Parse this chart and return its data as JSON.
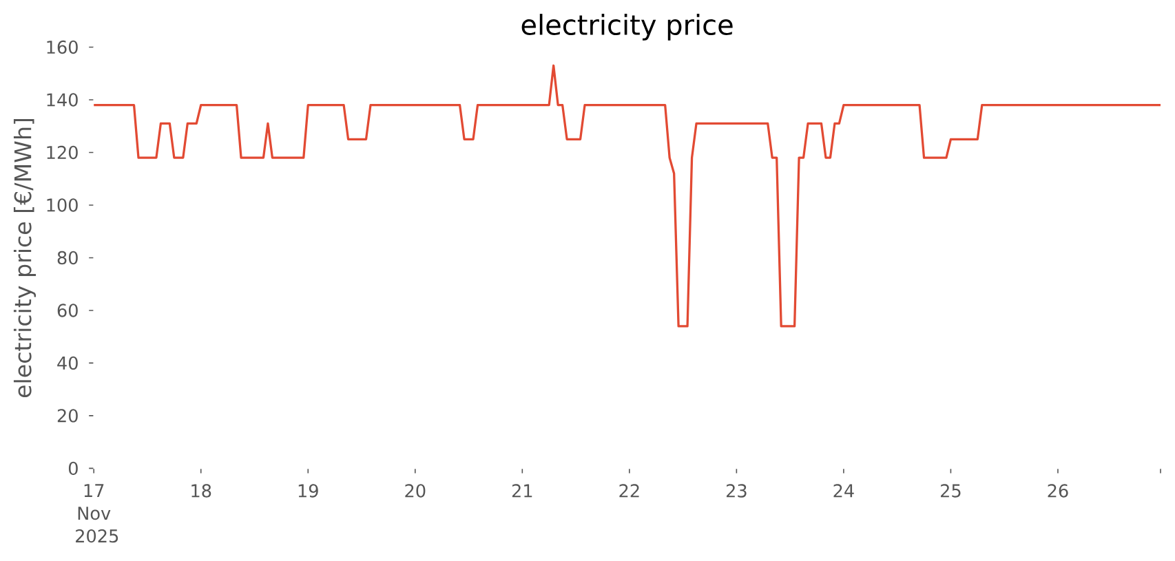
{
  "chart_data": {
    "type": "line",
    "title": "electricity price",
    "ylabel": "electricity price [€/MWh]",
    "x": [
      "2025-11-17T00:00",
      "2025-11-17T09:00",
      "2025-11-17T10:00",
      "2025-11-17T14:00",
      "2025-11-17T15:00",
      "2025-11-17T17:00",
      "2025-11-17T18:00",
      "2025-11-17T20:00",
      "2025-11-17T21:00",
      "2025-11-17T23:00",
      "2025-11-18T00:00",
      "2025-11-18T08:00",
      "2025-11-18T09:00",
      "2025-11-18T14:00",
      "2025-11-18T15:00",
      "2025-11-18T16:00",
      "2025-11-18T23:00",
      "2025-11-19T00:00",
      "2025-11-19T08:00",
      "2025-11-19T09:00",
      "2025-11-19T13:00",
      "2025-11-19T14:00",
      "2025-11-20T10:00",
      "2025-11-20T11:00",
      "2025-11-20T13:00",
      "2025-11-20T14:00",
      "2025-11-21T06:00",
      "2025-11-21T07:00",
      "2025-11-21T08:00",
      "2025-11-21T09:00",
      "2025-11-21T10:00",
      "2025-11-21T13:00",
      "2025-11-21T14:00",
      "2025-11-22T08:00",
      "2025-11-22T09:00",
      "2025-11-22T10:00",
      "2025-11-22T11:00",
      "2025-11-22T13:00",
      "2025-11-22T14:00",
      "2025-11-22T15:00",
      "2025-11-23T07:00",
      "2025-11-23T08:00",
      "2025-11-23T09:00",
      "2025-11-23T10:00",
      "2025-11-23T13:00",
      "2025-11-23T14:00",
      "2025-11-23T15:00",
      "2025-11-23T16:00",
      "2025-11-23T19:00",
      "2025-11-23T20:00",
      "2025-11-23T21:00",
      "2025-11-23T22:00",
      "2025-11-23T23:00",
      "2025-11-24T00:00",
      "2025-11-24T17:00",
      "2025-11-24T18:00",
      "2025-11-24T23:00",
      "2025-11-25T00:00",
      "2025-11-25T06:00",
      "2025-11-25T07:00",
      "2025-11-26T23:00"
    ],
    "series": [
      {
        "color": "#e24a33",
        "values": [
          138,
          138,
          118,
          118,
          131,
          131,
          118,
          118,
          131,
          131,
          138,
          138,
          118,
          118,
          131,
          118,
          118,
          138,
          138,
          125,
          125,
          138,
          138,
          125,
          125,
          138,
          138,
          153,
          138,
          138,
          125,
          125,
          138,
          138,
          118,
          112,
          54,
          54,
          118,
          131,
          131,
          118,
          118,
          54,
          54,
          118,
          118,
          131,
          131,
          118,
          118,
          131,
          131,
          138,
          138,
          118,
          118,
          125,
          125,
          138,
          138
        ]
      }
    ],
    "xlim": [
      "2025-11-17T00:00",
      "2025-11-26T23:00"
    ],
    "xticks": [
      {
        "value": "2025-11-17",
        "label": "17 Nov 2025"
      },
      {
        "value": "2025-11-18",
        "label": "18"
      },
      {
        "value": "2025-11-19",
        "label": "19"
      },
      {
        "value": "2025-11-20",
        "label": "20"
      },
      {
        "value": "2025-11-21",
        "label": "21"
      },
      {
        "value": "2025-11-22",
        "label": "22"
      },
      {
        "value": "2025-11-23",
        "label": "23"
      },
      {
        "value": "2025-11-24",
        "label": "24"
      },
      {
        "value": "2025-11-25",
        "label": "25"
      },
      {
        "value": "2025-11-26",
        "label": "26"
      },
      {
        "value": "2025-11-26T23:00",
        "label": null
      }
    ],
    "ylim": [
      0,
      160
    ],
    "yticks": [
      0,
      20,
      40,
      60,
      80,
      100,
      120,
      140,
      160
    ],
    "marker": "none",
    "line_style": "solid"
  }
}
